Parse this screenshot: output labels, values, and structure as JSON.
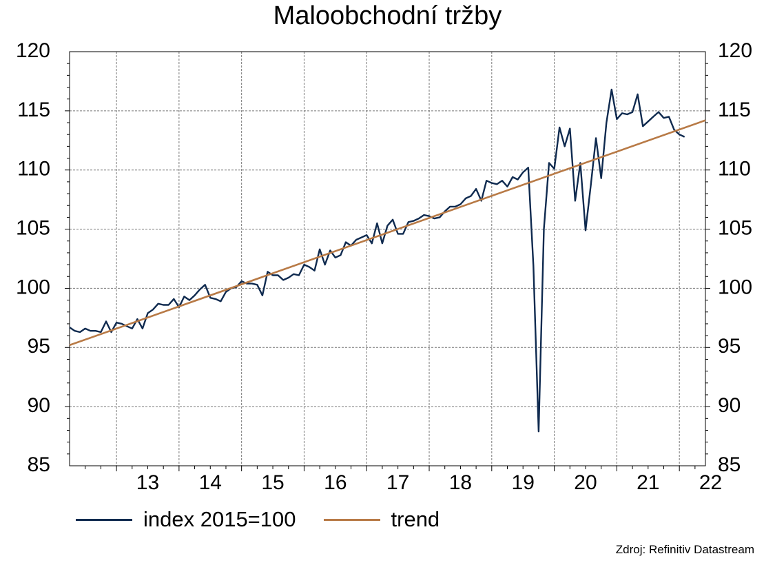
{
  "chart_data": {
    "type": "line",
    "title": "Maloobchodní tržby",
    "source": "Zdroj: Refinitiv Datastream",
    "x_tick_labels": [
      "13",
      "14",
      "15",
      "16",
      "17",
      "18",
      "19",
      "20",
      "21",
      "22"
    ],
    "y_tick_labels": [
      "120",
      "115",
      "110",
      "105",
      "100",
      "95",
      "90",
      "85"
    ],
    "ylim": [
      85,
      120
    ],
    "xlim": [
      "2012-04",
      "2022-06"
    ],
    "grid": true,
    "legend_position": "bottom-left",
    "colors": {
      "index": "#0f2a4f",
      "trend": "#b87a46"
    },
    "series": [
      {
        "name": "index 2015=100",
        "start": "2012-04",
        "values": [
          96.7,
          96.4,
          96.3,
          96.6,
          96.4,
          96.4,
          96.3,
          97.2,
          96.3,
          97.1,
          97.0,
          96.8,
          96.6,
          97.4,
          96.6,
          97.9,
          98.2,
          98.7,
          98.6,
          98.6,
          99.1,
          98.4,
          99.3,
          99.0,
          99.4,
          99.9,
          100.3,
          99.2,
          99.1,
          98.9,
          99.7,
          100.0,
          100.1,
          100.6,
          100.4,
          100.4,
          100.3,
          99.4,
          101.4,
          101.1,
          101.1,
          100.7,
          100.9,
          101.2,
          101.1,
          102.0,
          101.8,
          101.5,
          103.3,
          102.0,
          103.2,
          102.6,
          102.8,
          103.9,
          103.6,
          104.1,
          104.3,
          104.5,
          103.8,
          105.5,
          103.8,
          105.3,
          105.8,
          104.6,
          104.6,
          105.6,
          105.7,
          105.9,
          106.2,
          106.1,
          105.9,
          106.0,
          106.5,
          106.9,
          106.9,
          107.1,
          107.6,
          107.8,
          108.4,
          107.4,
          109.1,
          108.9,
          108.8,
          109.1,
          108.6,
          109.4,
          109.2,
          109.8,
          110.2,
          101.9,
          87.9,
          105.0,
          110.6,
          110.1,
          113.6,
          112.0,
          113.5,
          107.4,
          110.6,
          104.9,
          108.7,
          112.7,
          109.3,
          114.0,
          116.8,
          114.3,
          114.8,
          114.7,
          114.9,
          116.4,
          113.7,
          114.1,
          114.5,
          114.9,
          114.4,
          114.5,
          113.4,
          113.0,
          112.8
        ]
      },
      {
        "name": "trend",
        "start": "2012-04",
        "values": [
          95.2,
          114.2
        ]
      }
    ]
  }
}
